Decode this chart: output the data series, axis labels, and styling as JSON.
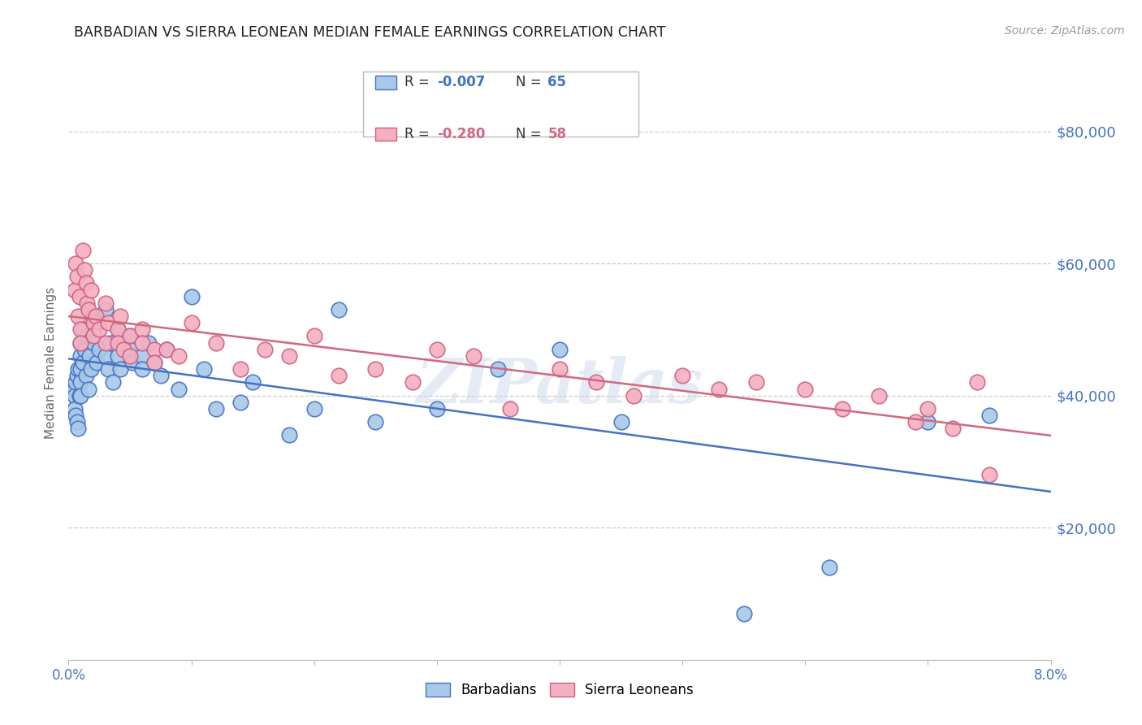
{
  "title": "BARBADIAN VS SIERRA LEONEAN MEDIAN FEMALE EARNINGS CORRELATION CHART",
  "source": "Source: ZipAtlas.com",
  "ylabel": "Median Female Earnings",
  "x_min": 0.0,
  "x_max": 0.08,
  "y_min": 0,
  "y_max": 90000,
  "yticks": [
    0,
    20000,
    40000,
    60000,
    80000
  ],
  "ytick_labels": [
    "",
    "$20,000",
    "$40,000",
    "$60,000",
    "$80,000"
  ],
  "xticks": [
    0.0,
    0.01,
    0.02,
    0.03,
    0.04,
    0.05,
    0.06,
    0.07,
    0.08
  ],
  "xtick_labels": [
    "0.0%",
    "",
    "",
    "",
    "",
    "",
    "",
    "",
    "8.0%"
  ],
  "barbadian_color": "#a8c8e8",
  "sierra_leonean_color": "#f4b0c0",
  "barbadian_edge_color": "#4472c4",
  "sierra_leonean_edge_color": "#d06080",
  "line_blue": "#4472c4",
  "line_pink": "#d06880",
  "legend_R1": "-0.007",
  "legend_N1": "65",
  "legend_R2": "-0.280",
  "legend_N2": "58",
  "watermark": "ZIPatlas",
  "barbadian_x": [
    0.0005,
    0.0005,
    0.0005,
    0.0006,
    0.0006,
    0.0007,
    0.0007,
    0.0008,
    0.0008,
    0.0009,
    0.001,
    0.001,
    0.001,
    0.001,
    0.001,
    0.0012,
    0.0012,
    0.0013,
    0.0014,
    0.0015,
    0.0016,
    0.0017,
    0.0018,
    0.002,
    0.002,
    0.002,
    0.0022,
    0.0023,
    0.0025,
    0.003,
    0.003,
    0.0032,
    0.0034,
    0.0036,
    0.004,
    0.004,
    0.0042,
    0.0045,
    0.005,
    0.005,
    0.0052,
    0.006,
    0.006,
    0.0065,
    0.007,
    0.0075,
    0.008,
    0.009,
    0.01,
    0.011,
    0.012,
    0.014,
    0.015,
    0.018,
    0.02,
    0.022,
    0.025,
    0.03,
    0.035,
    0.04,
    0.045,
    0.055,
    0.062,
    0.07,
    0.075
  ],
  "barbadian_y": [
    41000,
    40000,
    38000,
    42000,
    37000,
    43000,
    36000,
    44000,
    35000,
    40000,
    48000,
    46000,
    44000,
    42000,
    40000,
    50000,
    45000,
    47000,
    43000,
    49000,
    41000,
    46000,
    44000,
    52000,
    50000,
    48000,
    51000,
    45000,
    47000,
    53000,
    46000,
    44000,
    48000,
    42000,
    50000,
    46000,
    44000,
    48000,
    49000,
    47000,
    45000,
    46000,
    44000,
    48000,
    45000,
    43000,
    47000,
    41000,
    55000,
    44000,
    38000,
    39000,
    42000,
    34000,
    38000,
    53000,
    36000,
    38000,
    44000,
    47000,
    36000,
    7000,
    14000,
    36000,
    37000
  ],
  "sierra_leonean_x": [
    0.0005,
    0.0006,
    0.0007,
    0.0008,
    0.0009,
    0.001,
    0.001,
    0.0012,
    0.0013,
    0.0014,
    0.0015,
    0.0016,
    0.0018,
    0.002,
    0.002,
    0.0022,
    0.0025,
    0.003,
    0.003,
    0.0032,
    0.004,
    0.004,
    0.0042,
    0.0045,
    0.005,
    0.005,
    0.006,
    0.006,
    0.007,
    0.007,
    0.008,
    0.009,
    0.01,
    0.012,
    0.014,
    0.016,
    0.018,
    0.02,
    0.022,
    0.025,
    0.028,
    0.03,
    0.033,
    0.036,
    0.04,
    0.043,
    0.046,
    0.05,
    0.053,
    0.056,
    0.06,
    0.063,
    0.066,
    0.069,
    0.07,
    0.072,
    0.074,
    0.075
  ],
  "sierra_leonean_y": [
    56000,
    60000,
    58000,
    52000,
    55000,
    50000,
    48000,
    62000,
    59000,
    57000,
    54000,
    53000,
    56000,
    51000,
    49000,
    52000,
    50000,
    54000,
    48000,
    51000,
    50000,
    48000,
    52000,
    47000,
    49000,
    46000,
    50000,
    48000,
    47000,
    45000,
    47000,
    46000,
    51000,
    48000,
    44000,
    47000,
    46000,
    49000,
    43000,
    44000,
    42000,
    47000,
    46000,
    38000,
    44000,
    42000,
    40000,
    43000,
    41000,
    42000,
    41000,
    38000,
    40000,
    36000,
    38000,
    35000,
    42000,
    28000
  ]
}
